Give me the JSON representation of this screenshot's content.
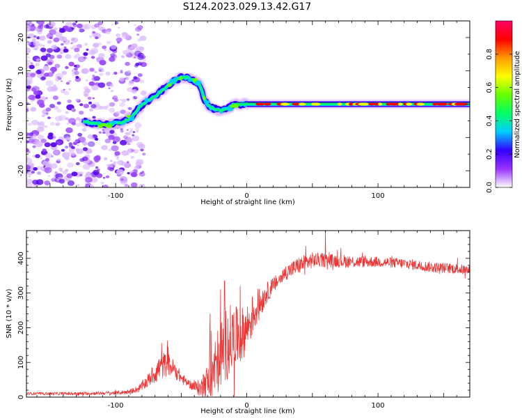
{
  "figure_title": "S124.2023.029.13.42.G17",
  "chart_data": [
    {
      "type": "heatmap",
      "name": "spectrogram",
      "title": "",
      "xlabel": "Height of straight line (km)",
      "ylabel": "Frequency (Hz)",
      "xlim": [
        -168,
        170
      ],
      "ylim": [
        -25,
        25
      ],
      "x_ticks": [
        -100,
        0,
        100
      ],
      "y_ticks": [
        -20,
        -10,
        0,
        10,
        20
      ],
      "x_tick_labels": [
        "-100",
        "0",
        "100"
      ],
      "y_tick_labels": [
        "-20",
        "-10",
        "0",
        "10",
        "20"
      ],
      "ridge": {
        "x": [
          -125,
          -115,
          -105,
          -95,
          -88,
          -82,
          -75,
          -68,
          -62,
          -55,
          -50,
          -45,
          -40,
          -36,
          -32,
          -28,
          -24,
          -20,
          -15,
          -10,
          0,
          50,
          100,
          150,
          170
        ],
        "y": [
          -5,
          -6,
          -6,
          -5.5,
          -4,
          -1,
          1,
          3,
          5,
          7,
          8,
          8,
          7,
          6,
          1,
          -1,
          -1.5,
          -2,
          -1.5,
          0,
          0,
          0,
          0,
          0,
          0
        ]
      },
      "colorbar": {
        "label": "Normalized spectral amplitude",
        "ticks": [
          0.0,
          0.2,
          0.4,
          0.6,
          0.8
        ],
        "tick_labels": [
          "0.0",
          "0.2",
          "0.4",
          "0.6",
          "0.8"
        ],
        "range": [
          0,
          1
        ],
        "colors": [
          "#ffffff",
          "#9933ff",
          "#3300ff",
          "#00ccff",
          "#00ff66",
          "#66ff00",
          "#ffff00",
          "#ff9900",
          "#ff0000",
          "#ff0066"
        ]
      }
    },
    {
      "type": "line",
      "name": "snr",
      "title": "",
      "xlabel": "Height of straight line (km)",
      "ylabel": "SNR (10 * v/v)",
      "xlim": [
        -168,
        170
      ],
      "ylim": [
        0,
        480
      ],
      "x_ticks": [
        -100,
        0,
        100
      ],
      "y_ticks": [
        0,
        100,
        200,
        300,
        400
      ],
      "x_tick_labels": [
        "-100",
        "0",
        "100"
      ],
      "y_tick_labels": [
        "0",
        "100",
        "200",
        "300",
        "400"
      ],
      "color": "#ee3333",
      "envelope": {
        "x": [
          -168,
          -130,
          -100,
          -90,
          -82,
          -76,
          -70,
          -65,
          -60,
          -55,
          -50,
          -45,
          -40,
          -35,
          -30,
          -25,
          -20,
          -15,
          -10,
          -5,
          0,
          5,
          10,
          15,
          20,
          25,
          30,
          35,
          40,
          50,
          60,
          80,
          100,
          120,
          140,
          160,
          170
        ],
        "y": [
          10,
          10,
          12,
          15,
          25,
          45,
          70,
          90,
          95,
          80,
          55,
          40,
          30,
          25,
          40,
          80,
          120,
          160,
          170,
          175,
          200,
          240,
          270,
          300,
          320,
          340,
          360,
          370,
          380,
          395,
          395,
          390,
          390,
          385,
          375,
          370,
          365
        ]
      },
      "noise": {
        "x": [
          -168,
          -100,
          -85,
          -75,
          -65,
          -55,
          -45,
          -35,
          -25,
          -15,
          -5,
          5,
          15,
          25,
          40,
          60,
          100,
          170
        ],
        "y": [
          4,
          5,
          8,
          20,
          40,
          25,
          10,
          25,
          90,
          110,
          80,
          60,
          30,
          20,
          25,
          20,
          15,
          15
        ]
      },
      "peaks": [
        {
          "x": -65,
          "y": 155
        },
        {
          "x": -60,
          "y": 145
        },
        {
          "x": -28,
          "y": 240
        },
        {
          "x": -20,
          "y": 310
        },
        {
          "x": -17,
          "y": 335
        },
        {
          "x": -5,
          "y": 320
        },
        {
          "x": 45,
          "y": 435
        },
        {
          "x": 60,
          "y": 480
        }
      ]
    }
  ]
}
